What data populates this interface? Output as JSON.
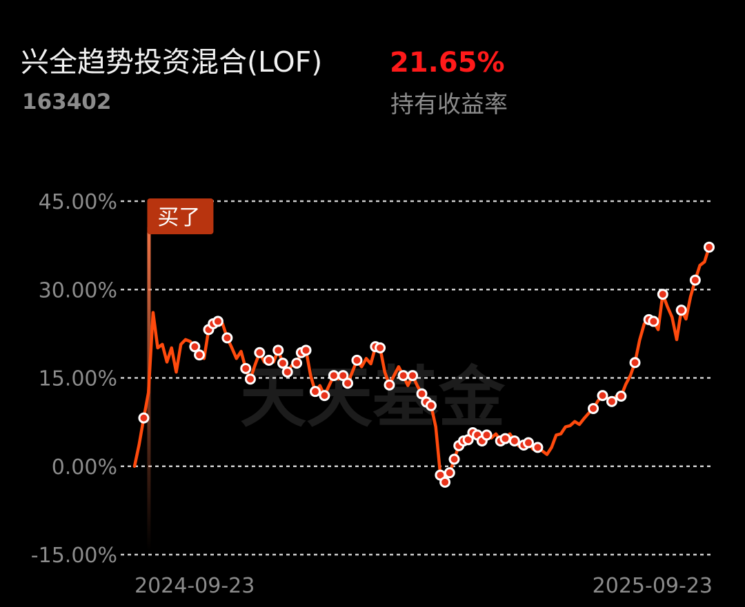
{
  "chart_data": {
    "type": "line",
    "title": "兴全趋势投资混合(LOF)",
    "code": "163402",
    "headline_value": "21.65%",
    "headline_label": "持有收益率",
    "buy_label": "买了",
    "watermark": "天天基金",
    "ylim": [
      -15,
      45
    ],
    "yticks": [
      {
        "value": 45,
        "label": "45.00%"
      },
      {
        "value": 30,
        "label": "30.00%"
      },
      {
        "value": 15,
        "label": "15.00%"
      },
      {
        "value": 0,
        "label": "0.00%"
      },
      {
        "value": -15,
        "label": "-15.00%"
      }
    ],
    "xticks": [
      "2024-09-23",
      "2025-09-23"
    ],
    "grid": true,
    "series": [
      {
        "color": "#ff4a0d",
        "values": [
          0,
          3.7,
          8.2,
          12.5,
          26.1,
          20.1,
          20.7,
          17.7,
          20.1,
          16.0,
          20.7,
          21.5,
          21.2,
          20.3,
          18.9,
          18.3,
          23.2,
          24.2,
          24.6,
          24.2,
          21.8,
          20.1,
          18.3,
          19.5,
          16.6,
          14.8,
          17.2,
          19.3,
          17.7,
          18.0,
          17.7,
          19.7,
          17.5,
          16.0,
          17.2,
          17.5,
          19.3,
          19.7,
          15.4,
          12.7,
          13.7,
          12.0,
          13.7,
          15.4,
          14.8,
          15.4,
          14.1,
          16.0,
          18.0,
          16.9,
          18.3,
          17.4,
          20.3,
          20.1,
          16.0,
          13.8,
          15.4,
          16.9,
          15.4,
          13.7,
          15.4,
          13.7,
          12.3,
          10.9,
          10.3,
          6.7,
          -1.5,
          -2.7,
          -1.1,
          1.2,
          3.5,
          4.3,
          4.5,
          5.7,
          5.3,
          4.3,
          5.3,
          4.8,
          5.5,
          4.3,
          4.7,
          5.5,
          4.3,
          3.4,
          3.6,
          4.0,
          2.9,
          3.2,
          2.6,
          2.0,
          3.2,
          5.3,
          5.5,
          6.7,
          6.9,
          7.6,
          7.1,
          8.1,
          9.0,
          9.8,
          11.1,
          12.0,
          11.6,
          11.0,
          11.9,
          11.9,
          13.9,
          15.4,
          17.6,
          21.4,
          24.2,
          24.9,
          24.6,
          23.2,
          29.2,
          27.1,
          25.3,
          21.5,
          26.5,
          25.0,
          28.8,
          31.6,
          34.1,
          34.7,
          37.2
        ]
      },
      {
        "type": "scatter",
        "color": "#e8321a",
        "values": [
          null,
          null,
          8.2,
          null,
          null,
          null,
          null,
          null,
          null,
          null,
          null,
          null,
          null,
          20.3,
          18.9,
          null,
          23.2,
          24.2,
          24.6,
          null,
          21.8,
          null,
          null,
          null,
          16.6,
          14.8,
          null,
          19.3,
          null,
          18.0,
          null,
          19.7,
          17.5,
          16.0,
          null,
          17.5,
          19.3,
          19.7,
          null,
          12.7,
          null,
          12.0,
          null,
          15.4,
          null,
          15.4,
          14.1,
          null,
          18.0,
          null,
          null,
          null,
          20.3,
          20.1,
          null,
          13.8,
          null,
          null,
          15.4,
          null,
          15.4,
          null,
          12.3,
          10.9,
          10.3,
          null,
          -1.5,
          -2.7,
          -1.1,
          1.2,
          3.5,
          4.3,
          4.5,
          5.7,
          5.3,
          4.3,
          5.3,
          null,
          null,
          4.3,
          4.7,
          null,
          4.3,
          null,
          3.6,
          4.0,
          null,
          3.2,
          null,
          null,
          null,
          null,
          null,
          null,
          null,
          null,
          null,
          null,
          null,
          9.8,
          null,
          12.0,
          null,
          11.0,
          null,
          11.9,
          null,
          null,
          17.6,
          null,
          null,
          24.9,
          24.6,
          null,
          29.2,
          null,
          null,
          null,
          26.5,
          null,
          null,
          31.6,
          null,
          null,
          37.2
        ]
      }
    ]
  }
}
